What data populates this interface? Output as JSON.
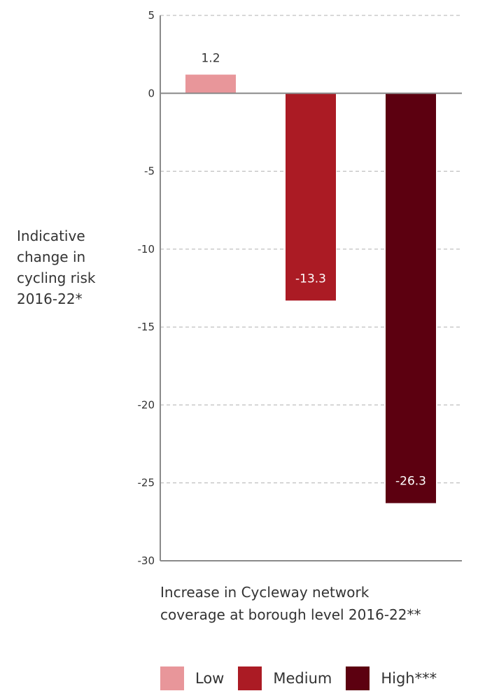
{
  "chart_data": {
    "type": "bar",
    "categories": [
      "Low",
      "Medium",
      "High***"
    ],
    "values": [
      1.2,
      -13.3,
      -26.3
    ],
    "data_labels": [
      "1.2",
      "-13.3",
      "-26.3"
    ],
    "colors": [
      "#e8969a",
      "#ab1b24",
      "#5c0010"
    ],
    "ylim": [
      -30,
      5
    ],
    "yticks": [
      5,
      0,
      -5,
      -10,
      -15,
      -20,
      -25,
      -30
    ],
    "ytick_labels": [
      "5",
      "0",
      "-5",
      "-10",
      "-15",
      "-20",
      "-25",
      "-30"
    ],
    "ylabel_lines": [
      "Indicative",
      "change in",
      "cycling risk",
      "2016-22*"
    ],
    "xlabel_lines": [
      "Increase in Cycleway network",
      "coverage at borough level 2016-22**"
    ],
    "grid": true,
    "legend_position": "bottom"
  },
  "legend": {
    "items": [
      {
        "label": "Low",
        "color": "#e8969a"
      },
      {
        "label": "Medium",
        "color": "#ab1b24"
      },
      {
        "label": "High***",
        "color": "#5c0010"
      }
    ]
  }
}
